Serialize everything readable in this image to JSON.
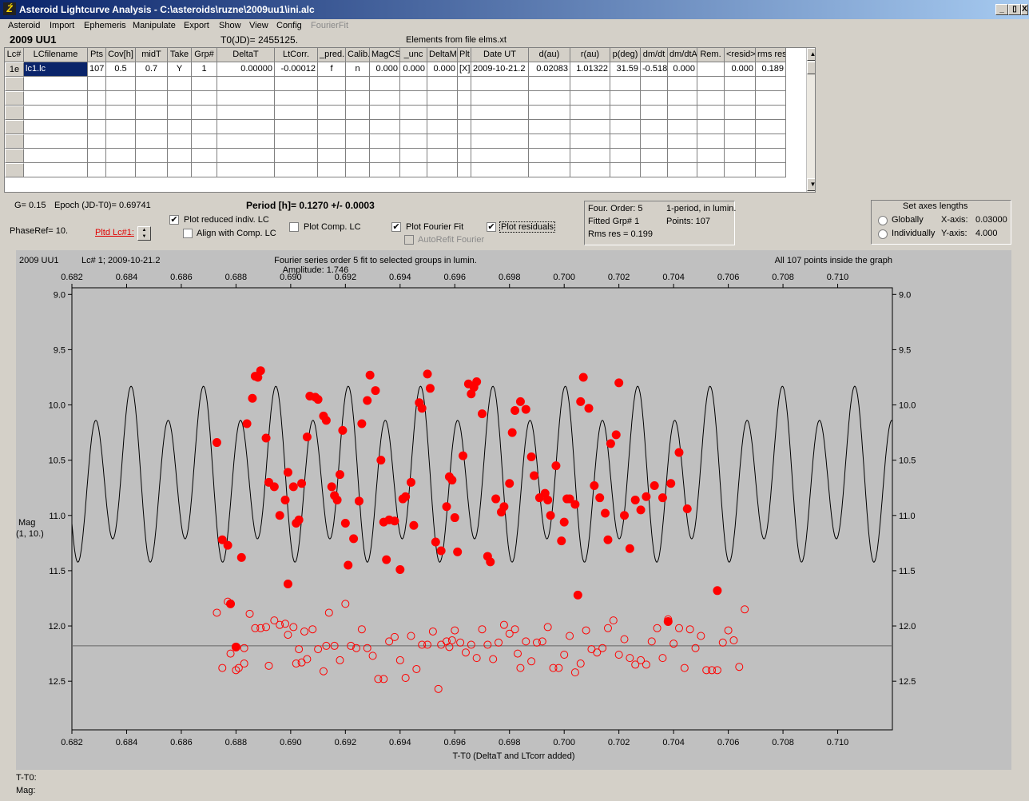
{
  "window": {
    "title": "Asteroid Lightcurve Analysis - C:\\asteroids\\ruzne\\2009uu1\\ini.alc",
    "icon": "app-icon",
    "buttons": [
      "_",
      "▯",
      "X"
    ]
  },
  "menu": [
    "Asteroid",
    "Import",
    "Ephemeris",
    "Manipulate",
    "Export",
    "Show",
    "View",
    "Config",
    "FourierFit"
  ],
  "header": {
    "asteroid": "2009 UU1",
    "t0": "T0(JD)= 2455125.",
    "elements": "Elements from file elms.xt"
  },
  "table": {
    "columns": [
      "Lc#",
      "LCfilename",
      "Pts",
      "Cov[h]",
      "midT",
      "Take",
      "Grp#",
      "DeltaT",
      "LtCorr.",
      "_pred.",
      "Calib.",
      "MagCS",
      "_unc",
      "DeltaM",
      "Plt",
      "Date UT",
      "d(au)",
      "r(au)",
      "p(deg)",
      "dm/dt",
      "dm/dtA",
      "Rem.",
      "<resid>",
      "rms res"
    ],
    "rows": [
      [
        "1e",
        "lc1.lc",
        "107",
        "0.5",
        "0.7",
        "Y",
        "1",
        "0.00000",
        "-0.00012",
        "f",
        "n",
        "0.000",
        "0.000",
        "0.000",
        "[X]",
        "2009-10-21.2",
        "0.02083",
        "1.01322",
        "31.59",
        "-0.518",
        "0.000",
        "",
        "0.000",
        "0.189"
      ]
    ]
  },
  "controls": {
    "g": "G= 0.15",
    "epoch": "Epoch (JD-T0)= 0.69741",
    "period": "Period [h]= 0.1270 +/- 0.0003",
    "phaseref": "PhaseRef= 10.",
    "pltd": "Pltd Lc#1:",
    "plot_reduced": "Plot reduced indiv. LC",
    "align": "Align with Comp. LC",
    "plot_comp": "Plot Comp. LC",
    "plot_fourier": "Plot Fourier Fit",
    "autorefit": "AutoRefit Fourier",
    "plot_residuals": "Plot residuals",
    "checked": {
      "plot_reduced": true,
      "align": false,
      "plot_comp": false,
      "plot_fourier": true,
      "autorefit": false,
      "plot_residuals": true
    }
  },
  "fourier_info": {
    "order": "Four. Order:  5",
    "period_mode": "1-period, in lumin.",
    "fitted": "Fitted Grp# 1",
    "points": "Points: 107",
    "rms": "Rms res      = 0.199"
  },
  "axes_panel": {
    "title": "Set axes lengths",
    "globally": "Globally",
    "individually": "Individually",
    "xaxis_label": "X-axis:",
    "xaxis_value": "0.03000",
    "yaxis_label": "Y-axis:",
    "yaxis_value": "4.000"
  },
  "chart_data": {
    "type": "scatter",
    "title": "Fourier series order 5 fit to selected groups in lumin.",
    "subtitle": "Amplitude: 1.746",
    "left_label": "2009 UU1",
    "lc_label": "Lc# 1; 2009-10-21.2",
    "right_label": "All 107 points inside the graph",
    "xlabel": "T-T0 (DeltaT and LTcorr added)",
    "ylabel": "Mag",
    "ylabel2": "(1, 10.)",
    "xlim": [
      0.682,
      0.712
    ],
    "ylim": [
      12.94,
      8.94
    ],
    "xticks": [
      "0.682",
      "0.684",
      "0.686",
      "0.688",
      "0.690",
      "0.692",
      "0.694",
      "0.696",
      "0.698",
      "0.700",
      "0.702",
      "0.704",
      "0.706",
      "0.708",
      "0.710"
    ],
    "yticks": [
      "9.0",
      "9.5",
      "10.0",
      "10.5",
      "11.0",
      "11.5",
      "12.0",
      "12.5"
    ],
    "fourier": {
      "mean": 10.65,
      "amp": 0.85,
      "period_days": 0.002646,
      "epoch": 0.69741
    },
    "residual_line": 12.18,
    "series": [
      {
        "name": "reduced",
        "x": [
          0.6873,
          0.6875,
          0.6877,
          0.6882,
          0.6884,
          0.6886,
          0.6887,
          0.6888,
          0.6889,
          0.6891,
          0.6892,
          0.6894,
          0.6896,
          0.6898,
          0.6899,
          0.6901,
          0.6902,
          0.6903,
          0.6904,
          0.6906,
          0.6907,
          0.6909,
          0.691,
          0.6912,
          0.6913,
          0.6915,
          0.6916,
          0.6917,
          0.6918,
          0.6919,
          0.692,
          0.6921,
          0.6923,
          0.6925,
          0.6926,
          0.6928,
          0.6929,
          0.6931,
          0.6933,
          0.6934,
          0.6935,
          0.6936,
          0.6938,
          0.694,
          0.6941,
          0.6942,
          0.6944,
          0.6945,
          0.6947,
          0.6948,
          0.695,
          0.6951,
          0.6953,
          0.6955,
          0.6957,
          0.6958,
          0.6959,
          0.696,
          0.6961,
          0.6963,
          0.6965,
          0.6966,
          0.6967,
          0.6968,
          0.697,
          0.6972,
          0.6973,
          0.6975,
          0.6977,
          0.6978,
          0.698,
          0.6981,
          0.6982,
          0.6984,
          0.6986,
          0.6988,
          0.6989,
          0.6991,
          0.6993,
          0.6994,
          0.6995,
          0.6997,
          0.6999,
          0.7,
          0.7001,
          0.7002,
          0.7004,
          0.7006,
          0.7007,
          0.7009,
          0.7011,
          0.7013,
          0.7015,
          0.7016,
          0.7017,
          0.7019,
          0.702,
          0.7022,
          0.7024,
          0.7026,
          0.7028,
          0.703,
          0.7033,
          0.7036,
          0.7039,
          0.7042,
          0.7045
        ],
        "y": [
          10.34,
          11.22,
          11.27,
          11.38,
          10.17,
          9.94,
          9.74,
          9.75,
          9.69,
          10.3,
          10.7,
          10.74,
          11.0,
          10.86,
          10.61,
          10.74,
          11.07,
          11.04,
          10.71,
          10.29,
          9.92,
          9.93,
          9.95,
          10.1,
          10.14,
          10.74,
          10.82,
          10.86,
          10.63,
          10.23,
          11.07,
          11.45,
          11.21,
          10.87,
          10.17,
          9.96,
          9.73,
          9.87,
          10.5,
          11.06,
          11.4,
          11.04,
          11.05,
          11.49,
          10.85,
          10.83,
          10.7,
          11.09,
          9.98,
          10.03,
          9.72,
          9.85,
          11.24,
          11.32,
          10.92,
          10.65,
          10.68,
          11.02,
          11.33,
          10.46,
          9.81,
          9.9,
          9.84,
          9.79,
          10.08,
          11.37,
          11.42,
          10.85,
          10.97,
          10.92,
          10.71,
          10.25,
          10.05,
          9.97,
          10.04,
          10.47,
          10.64,
          10.84,
          10.8,
          10.86,
          11.0,
          10.55,
          11.23,
          11.06,
          10.85,
          10.85,
          10.9,
          9.97,
          9.75,
          10.03,
          10.73,
          10.84,
          10.98,
          11.22,
          10.35,
          10.27,
          9.8,
          11.0,
          11.3,
          10.86,
          10.95,
          10.83,
          10.73,
          10.84,
          10.71,
          10.43,
          10.94
        ]
      },
      {
        "name": "residual",
        "x": [
          0.6873,
          0.6875,
          0.6877,
          0.6878,
          0.688,
          0.6881,
          0.6883,
          0.6885,
          0.6887,
          0.6889,
          0.6891,
          0.6892,
          0.6894,
          0.6896,
          0.6898,
          0.6899,
          0.6901,
          0.6902,
          0.6903,
          0.6904,
          0.6906,
          0.6908,
          0.691,
          0.6912,
          0.6914,
          0.6916,
          0.6918,
          0.692,
          0.6922,
          0.6924,
          0.6926,
          0.6928,
          0.693,
          0.6932,
          0.6934,
          0.6936,
          0.6938,
          0.694,
          0.6942,
          0.6944,
          0.6946,
          0.6948,
          0.695,
          0.6952,
          0.6954,
          0.6955,
          0.6957,
          0.6958,
          0.696,
          0.6962,
          0.6964,
          0.6966,
          0.6968,
          0.697,
          0.6972,
          0.6974,
          0.6976,
          0.6978,
          0.698,
          0.6982,
          0.6984,
          0.6986,
          0.6988,
          0.699,
          0.6992,
          0.6994,
          0.6996,
          0.6998,
          0.7,
          0.7002,
          0.7004,
          0.7006,
          0.7008,
          0.701,
          0.7012,
          0.7014,
          0.7016,
          0.7018,
          0.702,
          0.7022,
          0.7024,
          0.7026,
          0.7028,
          0.703,
          0.7032,
          0.7034,
          0.7036,
          0.7038,
          0.704,
          0.7042,
          0.7044,
          0.7046,
          0.7048,
          0.705,
          0.7052,
          0.7054,
          0.7056,
          0.7058,
          0.706,
          0.7062,
          0.7064,
          0.7066,
          0.6883,
          0.6905,
          0.6913,
          0.6959,
          0.6983
        ],
        "y": [
          11.88,
          12.38,
          11.78,
          12.25,
          12.4,
          12.38,
          12.34,
          11.89,
          12.02,
          12.02,
          12.01,
          12.36,
          11.95,
          11.99,
          11.98,
          12.08,
          12.01,
          12.34,
          12.21,
          12.33,
          12.3,
          12.03,
          12.21,
          12.41,
          11.88,
          12.18,
          12.31,
          11.8,
          12.18,
          12.2,
          12.03,
          12.2,
          12.27,
          12.48,
          12.48,
          12.14,
          12.1,
          12.31,
          12.47,
          12.09,
          12.39,
          12.17,
          12.17,
          12.05,
          12.57,
          12.17,
          12.14,
          12.19,
          12.04,
          12.15,
          12.24,
          12.17,
          12.29,
          12.03,
          12.17,
          12.3,
          12.15,
          11.99,
          12.07,
          12.03,
          12.38,
          12.14,
          12.32,
          12.15,
          12.14,
          12.01,
          12.38,
          12.38,
          12.26,
          12.09,
          12.42,
          12.34,
          12.04,
          12.21,
          12.24,
          12.2,
          12.02,
          11.95,
          12.26,
          12.12,
          12.29,
          12.35,
          12.31,
          12.35,
          12.14,
          12.02,
          12.29,
          11.94,
          12.16,
          12.02,
          12.38,
          12.03,
          12.2,
          12.09,
          12.4,
          12.4,
          12.4,
          12.15,
          12.04,
          12.13,
          12.37,
          11.85,
          12.2,
          12.05,
          12.18,
          12.13,
          12.25
        ]
      },
      {
        "name": "residual-filled",
        "x": [
          0.6878,
          0.688,
          0.6899,
          0.7005,
          0.7038,
          0.7056
        ],
        "y": [
          11.8,
          12.19,
          11.62,
          11.72,
          11.96,
          11.68
        ]
      }
    ]
  },
  "status": {
    "t": "T-T0:",
    "mag": "Mag:"
  }
}
